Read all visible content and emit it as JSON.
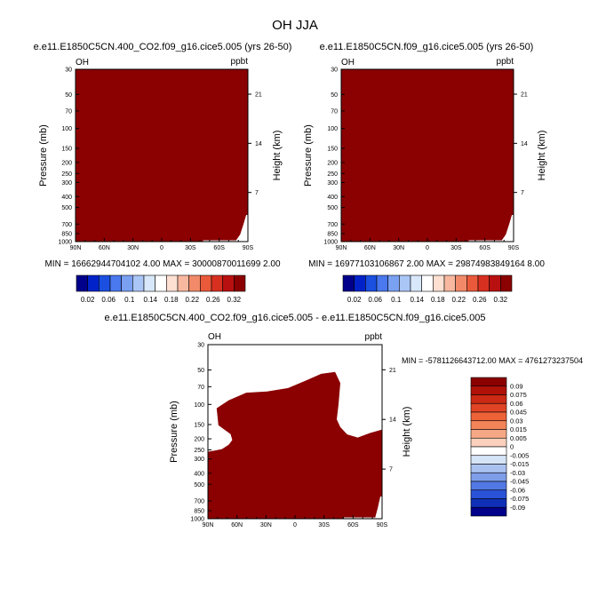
{
  "page_title": "OH JJA",
  "colors": {
    "field": "#8b0000",
    "background": "#ffffff",
    "zero_line": "#e6e6e6"
  },
  "chart_data": [
    {
      "type": "heatmap",
      "title": "e.e11.E1850C5CN.400_CO2.f09_g16.cice5.005 (yrs 26-50)",
      "variable_label": "OH",
      "units_label": "ppbt",
      "ylabel": "Pressure (mb)",
      "ylabel_right": "Height (km)",
      "x_ticks": [
        "90N",
        "60N",
        "30N",
        "0",
        "30S",
        "60S",
        "90S"
      ],
      "y_ticks": [
        "30",
        "50",
        "70",
        "100",
        "150",
        "200",
        "250",
        "300",
        "400",
        "500",
        "700",
        "850",
        "1000"
      ],
      "height_ticks": [
        "21",
        "14",
        "7"
      ],
      "stats": "MIN = 16662944704102 4.00  MAX = 30000870011699 2.00",
      "colorbar": {
        "orientation": "horizontal",
        "labels": [
          "0.02",
          "0.06",
          "0.1",
          "0.14",
          "0.18",
          "0.22",
          "0.26",
          "0.32"
        ],
        "colors": [
          "#00008b",
          "#0022c8",
          "#1a4fe0",
          "#4a78ee",
          "#7aa0f2",
          "#aac6f6",
          "#d8e8fa",
          "#ffffff",
          "#fde0d2",
          "#f8b8a0",
          "#f28a6a",
          "#ea5a3a",
          "#d83020",
          "#b81010",
          "#8b0000"
        ]
      }
    },
    {
      "type": "heatmap",
      "title": "e.e11.E1850C5CN.f09_g16.cice5.005 (yrs 26-50)",
      "variable_label": "OH",
      "units_label": "ppbt",
      "ylabel": "Pressure (mb)",
      "ylabel_right": "Height (km)",
      "x_ticks": [
        "90N",
        "60N",
        "30N",
        "0",
        "30S",
        "60S",
        "90S"
      ],
      "y_ticks": [
        "30",
        "50",
        "70",
        "100",
        "150",
        "200",
        "250",
        "300",
        "400",
        "500",
        "700",
        "850",
        "1000"
      ],
      "height_ticks": [
        "21",
        "14",
        "7"
      ],
      "stats": "MIN = 16977103106867 2.00  MAX = 29874983849164 8.00",
      "colorbar": {
        "orientation": "horizontal",
        "labels": [
          "0.02",
          "0.06",
          "0.1",
          "0.14",
          "0.18",
          "0.22",
          "0.26",
          "0.32"
        ],
        "colors": [
          "#00008b",
          "#0022c8",
          "#1a4fe0",
          "#4a78ee",
          "#7aa0f2",
          "#aac6f6",
          "#d8e8fa",
          "#ffffff",
          "#fde0d2",
          "#f8b8a0",
          "#f28a6a",
          "#ea5a3a",
          "#d83020",
          "#b81010",
          "#8b0000"
        ]
      }
    },
    {
      "type": "heatmap",
      "title": "e.e11.E1850C5CN.400_CO2.f09_g16.cice5.005 - e.e11.E1850C5CN.f09_g16.cice5.005",
      "variable_label": "OH",
      "units_label": "ppbt",
      "ylabel": "Pressure (mb)",
      "ylabel_right": "Height (km)",
      "x_ticks": [
        "90N",
        "60N",
        "30N",
        "0",
        "30S",
        "60S",
        "90S"
      ],
      "y_ticks": [
        "30",
        "50",
        "70",
        "100",
        "150",
        "200",
        "250",
        "300",
        "400",
        "500",
        "700",
        "850",
        "1000"
      ],
      "height_ticks": [
        "21",
        "14",
        "7"
      ],
      "stats": "MIN = -5781126643712.00  MAX = 4761273237504",
      "colorbar": {
        "orientation": "vertical",
        "labels": [
          "0.09",
          "0.075",
          "0.06",
          "0.045",
          "0.03",
          "0.015",
          "0.005",
          "0",
          "-0.005",
          "-0.015",
          "-0.03",
          "-0.045",
          "-0.06",
          "-0.075",
          "-0.09"
        ],
        "colors": [
          "#8b0000",
          "#b01208",
          "#cc2a14",
          "#e04424",
          "#ee6238",
          "#f38458",
          "#f6a886",
          "#fbd0bc",
          "#ffffff",
          "#d6e4f8",
          "#aac2f0",
          "#7e9eea",
          "#5278e4",
          "#2a52d8",
          "#1030b8",
          "#00008b"
        ]
      }
    }
  ]
}
